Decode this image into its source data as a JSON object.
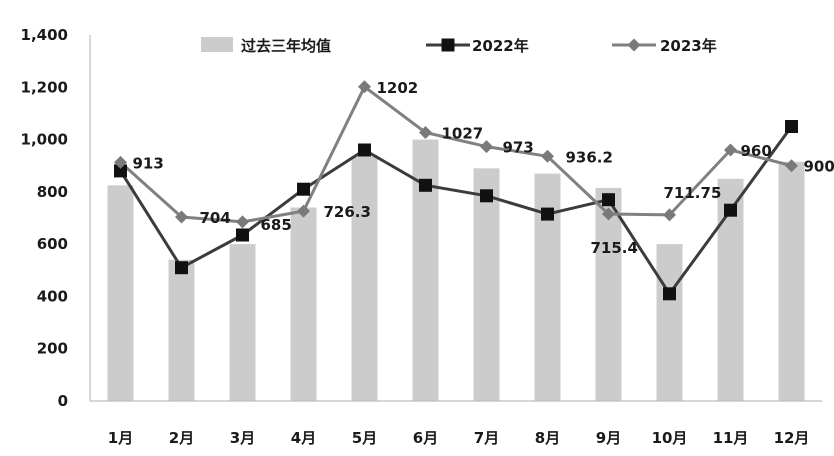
{
  "chart_data": {
    "type": "bar",
    "categories": [
      "1月",
      "2月",
      "3月",
      "4月",
      "5月",
      "6月",
      "7月",
      "8月",
      "9月",
      "10月",
      "11月",
      "12月"
    ],
    "series": [
      {
        "name": "过去三年均值",
        "type": "bar",
        "values": [
          825,
          540,
          600,
          740,
          935,
          1000,
          890,
          870,
          815,
          600,
          850,
          915
        ]
      },
      {
        "name": "2022年",
        "type": "line",
        "marker": "square",
        "values": [
          880,
          510,
          635,
          810,
          960,
          825,
          785,
          715,
          770,
          410,
          730,
          1050
        ]
      },
      {
        "name": "2023年",
        "type": "line",
        "marker": "diamond",
        "values": [
          913,
          704,
          685,
          726.3,
          1202,
          1027,
          973,
          936.2,
          715.4,
          711.75,
          960,
          900
        ],
        "data_labels": [
          "913",
          "704",
          "685",
          "726.3",
          "1202",
          "1027",
          "973",
          "936.2",
          "715.4",
          "711.75",
          "960",
          "900"
        ]
      }
    ],
    "y_ticks": [
      "0",
      "200",
      "400",
      "600",
      "800",
      "1,000",
      "1,200",
      "1,400"
    ],
    "ylim": [
      0,
      1400
    ],
    "grid": false,
    "legend": "top-center",
    "colors": {
      "bar": "#cccccc",
      "line2022": "#3c3c3c",
      "marker2022": "#111111",
      "line2023": "#808080",
      "marker2023": "#7a7a7a"
    }
  }
}
